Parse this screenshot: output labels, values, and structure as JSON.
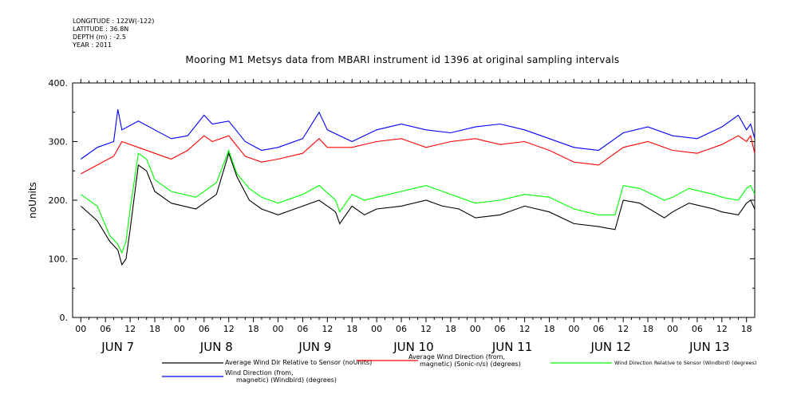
{
  "metadata": {
    "longitude": "LONGITUDE : 122W(-122)",
    "latitude": "LATITUDE : 36.8N",
    "depth": "DEPTH (m) : -2.5",
    "year": "YEAR : 2011"
  },
  "chart_data": {
    "type": "line",
    "title": "Mooring M1 Metsys data from MBARI instrument id 1396 at original sampling intervals",
    "ylabel": "noUnits",
    "ylim": [
      0,
      400
    ],
    "yticks": [
      "0.",
      "100.",
      "200.",
      "300.",
      "400."
    ],
    "x_range_hours": [
      -2,
      164
    ],
    "xtick_hours": [
      "00",
      "06",
      "12",
      "18",
      "00",
      "06",
      "12",
      "18",
      "00",
      "06",
      "12",
      "18",
      "00",
      "06",
      "12",
      "18",
      "00",
      "06",
      "12",
      "18",
      "00",
      "06",
      "12",
      "18",
      "00",
      "06",
      "12",
      "18"
    ],
    "day_labels": [
      "JUN  7",
      "JUN  8",
      "JUN  9",
      "JUN 10",
      "JUN 11",
      "JUN 12",
      "JUN 13"
    ],
    "series": [
      {
        "name": "Average Wind Dir Relative to Sensor (noUnits)",
        "color": "#000000",
        "x": [
          0,
          4,
          7,
          9,
          10,
          11,
          12,
          14,
          16,
          18,
          22,
          28,
          33,
          36,
          38,
          41,
          44,
          48,
          54,
          58,
          62,
          63,
          66,
          69,
          72,
          78,
          84,
          88,
          92,
          96,
          102,
          108,
          114,
          120,
          126,
          130,
          132,
          136,
          142,
          144,
          148,
          154,
          156,
          160,
          162,
          163,
          164
        ],
        "y": [
          190,
          165,
          130,
          115,
          90,
          100,
          150,
          260,
          250,
          215,
          195,
          185,
          210,
          280,
          240,
          200,
          185,
          175,
          190,
          200,
          180,
          160,
          190,
          175,
          185,
          190,
          200,
          190,
          185,
          170,
          175,
          190,
          180,
          160,
          155,
          150,
          200,
          195,
          170,
          180,
          195,
          185,
          180,
          175,
          195,
          200,
          185
        ]
      },
      {
        "name": "Average Wind Direction (from, magnetic) (Sonic-n/s) (degrees)",
        "color": "#ff0000",
        "x": [
          0,
          4,
          8,
          10,
          14,
          18,
          22,
          26,
          30,
          32,
          36,
          40,
          44,
          48,
          54,
          58,
          60,
          66,
          72,
          78,
          84,
          90,
          96,
          102,
          108,
          114,
          120,
          126,
          132,
          138,
          144,
          150,
          156,
          160,
          162,
          163,
          164
        ],
        "y": [
          245,
          260,
          275,
          300,
          290,
          280,
          270,
          285,
          310,
          300,
          310,
          275,
          265,
          270,
          280,
          305,
          290,
          290,
          300,
          305,
          290,
          300,
          305,
          295,
          300,
          285,
          265,
          260,
          290,
          300,
          285,
          280,
          295,
          310,
          300,
          310,
          280
        ]
      },
      {
        "name": "Wind Direction Relative to Sensor (Windbird) (degrees)",
        "color": "#00ff00",
        "x": [
          0,
          4,
          7,
          9,
          10,
          11,
          12,
          14,
          16,
          18,
          22,
          28,
          33,
          36,
          38,
          41,
          44,
          48,
          54,
          58,
          62,
          63,
          66,
          69,
          72,
          78,
          84,
          88,
          92,
          96,
          102,
          108,
          114,
          120,
          126,
          130,
          132,
          136,
          142,
          144,
          148,
          154,
          156,
          160,
          162,
          163,
          164
        ],
        "y": [
          210,
          190,
          140,
          125,
          110,
          130,
          185,
          280,
          270,
          235,
          215,
          205,
          230,
          285,
          245,
          220,
          205,
          195,
          210,
          225,
          200,
          180,
          210,
          200,
          205,
          215,
          225,
          215,
          205,
          195,
          200,
          210,
          205,
          185,
          175,
          175,
          225,
          220,
          200,
          205,
          220,
          210,
          205,
          200,
          220,
          225,
          210
        ]
      },
      {
        "name": "Wind Direction (from, magnetic) (Windbird) (degrees)",
        "color": "#0000ff",
        "x": [
          0,
          4,
          8,
          9,
          10,
          14,
          18,
          22,
          26,
          30,
          32,
          36,
          40,
          44,
          48,
          54,
          58,
          60,
          66,
          72,
          78,
          84,
          90,
          96,
          102,
          108,
          114,
          120,
          126,
          132,
          138,
          144,
          150,
          156,
          160,
          162,
          163,
          164
        ],
        "y": [
          270,
          290,
          300,
          355,
          320,
          335,
          320,
          305,
          310,
          345,
          330,
          335,
          300,
          285,
          290,
          305,
          350,
          320,
          300,
          320,
          330,
          320,
          315,
          325,
          330,
          320,
          305,
          290,
          285,
          315,
          325,
          310,
          305,
          325,
          345,
          320,
          330,
          305
        ]
      }
    ],
    "legend": [
      {
        "label_l1": "Average Wind Dir Relative to Sensor (noUnits)",
        "label_l2": "",
        "color": "#000000"
      },
      {
        "label_l1": "Average Wind Direction (from,",
        "label_l2": "magnetic) (Sonic-n/s) (degrees)",
        "color": "#ff0000"
      },
      {
        "label_l1": "Wind Direction Relative to Sensor (Windbird) (degrees)",
        "label_l2": "",
        "color": "#00ff00"
      },
      {
        "label_l1": "Wind Direction (from,",
        "label_l2": "magnetic) (Windbird) (degrees)",
        "color": "#0000ff"
      }
    ]
  }
}
